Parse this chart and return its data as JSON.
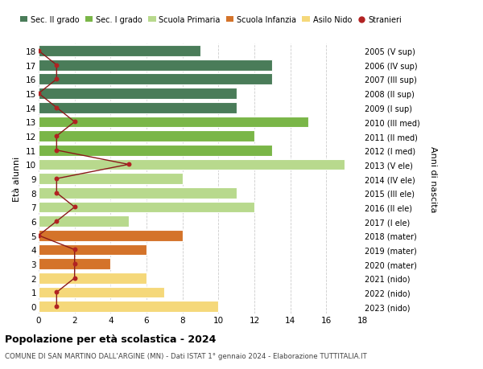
{
  "ages": [
    18,
    17,
    16,
    15,
    14,
    13,
    12,
    11,
    10,
    9,
    8,
    7,
    6,
    5,
    4,
    3,
    2,
    1,
    0
  ],
  "right_labels": [
    "2005 (V sup)",
    "2006 (IV sup)",
    "2007 (III sup)",
    "2008 (II sup)",
    "2009 (I sup)",
    "2010 (III med)",
    "2011 (II med)",
    "2012 (I med)",
    "2013 (V ele)",
    "2014 (IV ele)",
    "2015 (III ele)",
    "2016 (II ele)",
    "2017 (I ele)",
    "2018 (mater)",
    "2019 (mater)",
    "2020 (mater)",
    "2021 (nido)",
    "2022 (nido)",
    "2023 (nido)"
  ],
  "bar_values": [
    9,
    13,
    13,
    11,
    11,
    15,
    12,
    13,
    17,
    8,
    11,
    12,
    5,
    8,
    6,
    4,
    6,
    7,
    10
  ],
  "bar_colors": [
    "#4a7c59",
    "#4a7c59",
    "#4a7c59",
    "#4a7c59",
    "#4a7c59",
    "#7ab648",
    "#7ab648",
    "#7ab648",
    "#b8d98d",
    "#b8d98d",
    "#b8d98d",
    "#b8d98d",
    "#b8d98d",
    "#d4732a",
    "#d4732a",
    "#d4732a",
    "#f5d87a",
    "#f5d87a",
    "#f5d87a"
  ],
  "stranieri_values": [
    0,
    1,
    1,
    0,
    1,
    2,
    1,
    1,
    5,
    1,
    1,
    2,
    1,
    0,
    2,
    2,
    2,
    1,
    1
  ],
  "legend_labels": [
    "Sec. II grado",
    "Sec. I grado",
    "Scuola Primaria",
    "Scuola Infanzia",
    "Asilo Nido",
    "Stranieri"
  ],
  "legend_colors": [
    "#4a7c59",
    "#7ab648",
    "#b8d98d",
    "#d4732a",
    "#f5d87a",
    "#b22222"
  ],
  "title": "Popolazione per età scolastica - 2024",
  "subtitle": "COMUNE DI SAN MARTINO DALL'ARGINE (MN) - Dati ISTAT 1° gennaio 2024 - Elaborazione TUTTITALIA.IT",
  "ylabel_left": "Età alunni",
  "ylabel_right": "Anni di nascita",
  "xlim": [
    0,
    18
  ],
  "ylim": [
    -0.5,
    18.5
  ],
  "xticks": [
    0,
    2,
    4,
    6,
    8,
    10,
    12,
    14,
    16,
    18
  ],
  "bg_color": "#ffffff",
  "grid_color": "#cccccc",
  "bar_height": 0.78
}
